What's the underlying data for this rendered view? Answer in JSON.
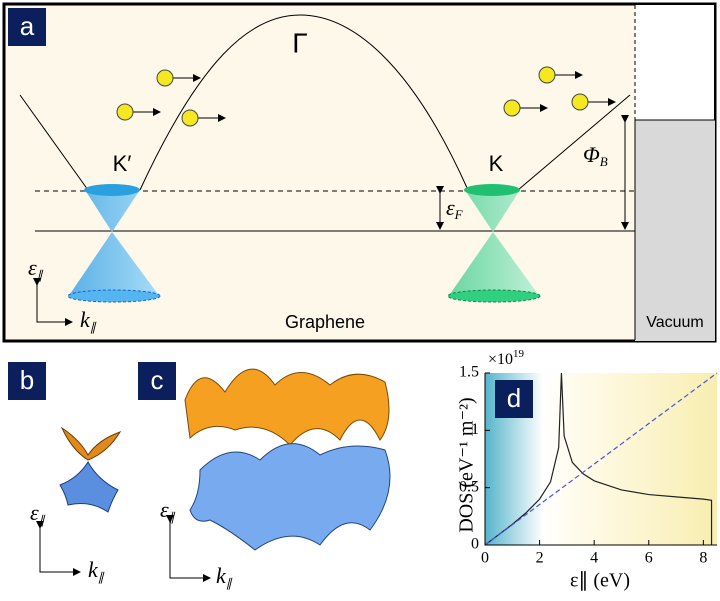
{
  "figure": {
    "a": {
      "label": "a",
      "gamma": "Γ",
      "k_prime": "K′",
      "k": "K",
      "fermi": {
        "symbol": "ε",
        "subscript": "F"
      },
      "barrier": {
        "symbol": "Φ",
        "subscript": "B"
      },
      "energy_axis": {
        "symbol": "ε",
        "subscript": "∥"
      },
      "momentum_axis": {
        "symbol": "k",
        "subscript": "∥"
      },
      "graphene": "Graphene",
      "vacuum": "Vacuum"
    },
    "b": {
      "label": "b",
      "energy_axis": {
        "symbol": "ε",
        "subscript": "∥"
      },
      "momentum_axis": {
        "symbol": "k",
        "subscript": "∥"
      }
    },
    "c": {
      "label": "c",
      "energy_axis": {
        "symbol": "ε",
        "subscript": "∥"
      },
      "momentum_axis": {
        "symbol": "k",
        "subscript": "∥"
      }
    }
  },
  "chart_data": {
    "type": "line",
    "panel_label": "d",
    "xlabel": "ε∥ (eV)",
    "ylabel": "DOS (eV⁻¹ m⁻²)",
    "y_multiplier": {
      "base": "×10",
      "exponent": "19"
    },
    "xlim": [
      0,
      8.5
    ],
    "xticks": [
      0,
      2,
      4,
      6,
      8
    ],
    "ylim": [
      0,
      1.5
    ],
    "yticks": [
      0,
      0.5,
      1,
      1.5
    ],
    "series": [
      {
        "color": "#222222",
        "dashed": false,
        "x": [
          0,
          0.5,
          1,
          1.5,
          2,
          2.4,
          2.7,
          2.8,
          2.9,
          3.2,
          3.6,
          4,
          5,
          6,
          7,
          8,
          8.3,
          8.3
        ],
        "values": [
          0,
          0.09,
          0.18,
          0.28,
          0.4,
          0.55,
          0.85,
          1.5,
          0.95,
          0.72,
          0.62,
          0.56,
          0.48,
          0.44,
          0.42,
          0.4,
          0.39,
          0
        ]
      },
      {
        "color": "#4455dd",
        "dashed": true,
        "x": [
          0,
          8.5
        ],
        "values": [
          0,
          1.5
        ]
      }
    ]
  }
}
